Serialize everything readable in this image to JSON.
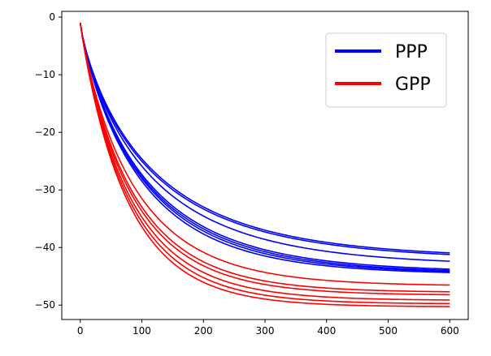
{
  "chart_data": {
    "type": "line",
    "title": "",
    "xlabel": "",
    "ylabel": "",
    "xlim": [
      -30,
      630
    ],
    "ylim": [
      -52.5,
      1.0
    ],
    "x_ticks": [
      0,
      100,
      200,
      300,
      400,
      500,
      600
    ],
    "y_ticks": [
      0,
      -10,
      -20,
      -30,
      -40,
      -50
    ],
    "x_tick_labels": [
      "0",
      "100",
      "200",
      "300",
      "400",
      "500",
      "600"
    ],
    "y_tick_labels": [
      "0",
      "−10",
      "−20",
      "−30",
      "−40",
      "−50"
    ],
    "grid": false,
    "legend": {
      "placement": "upper-right",
      "entries": [
        {
          "label": "PPP",
          "color": "#0000ff"
        },
        {
          "label": "GPP",
          "color": "#ff0000"
        }
      ]
    },
    "curve_model": "y = A - (A + 1) * exp(-(x/tau)^p) for x in [0, 600]",
    "series": [
      {
        "group": "PPP",
        "color": "#0000ff",
        "final": -41.9,
        "tau": 120,
        "p": 0.82
      },
      {
        "group": "PPP",
        "color": "#0000ff",
        "final": -42.2,
        "tau": 118,
        "p": 0.81
      },
      {
        "group": "PPP",
        "color": "#0000ff",
        "final": -43.2,
        "tau": 115,
        "p": 0.83
      },
      {
        "group": "PPP",
        "color": "#0000ff",
        "final": -44.3,
        "tau": 108,
        "p": 0.86
      },
      {
        "group": "PPP",
        "color": "#0000ff",
        "final": -44.6,
        "tau": 104,
        "p": 0.87
      },
      {
        "group": "PPP",
        "color": "#0000ff",
        "final": -44.7,
        "tau": 101,
        "p": 0.88
      },
      {
        "group": "PPP",
        "color": "#0000ff",
        "final": -44.5,
        "tau": 106,
        "p": 0.86
      },
      {
        "group": "GPP",
        "color": "#ff0000",
        "final": -46.7,
        "tau": 90,
        "p": 0.9
      },
      {
        "group": "GPP",
        "color": "#ff0000",
        "final": -47.8,
        "tau": 86,
        "p": 0.92
      },
      {
        "group": "GPP",
        "color": "#ff0000",
        "final": -48.3,
        "tau": 84,
        "p": 0.92
      },
      {
        "group": "GPP",
        "color": "#ff0000",
        "final": -49.2,
        "tau": 82,
        "p": 0.93
      },
      {
        "group": "GPP",
        "color": "#ff0000",
        "final": -49.8,
        "tau": 80,
        "p": 0.94
      },
      {
        "group": "GPP",
        "color": "#ff0000",
        "final": -50.3,
        "tau": 78,
        "p": 0.95
      }
    ]
  }
}
